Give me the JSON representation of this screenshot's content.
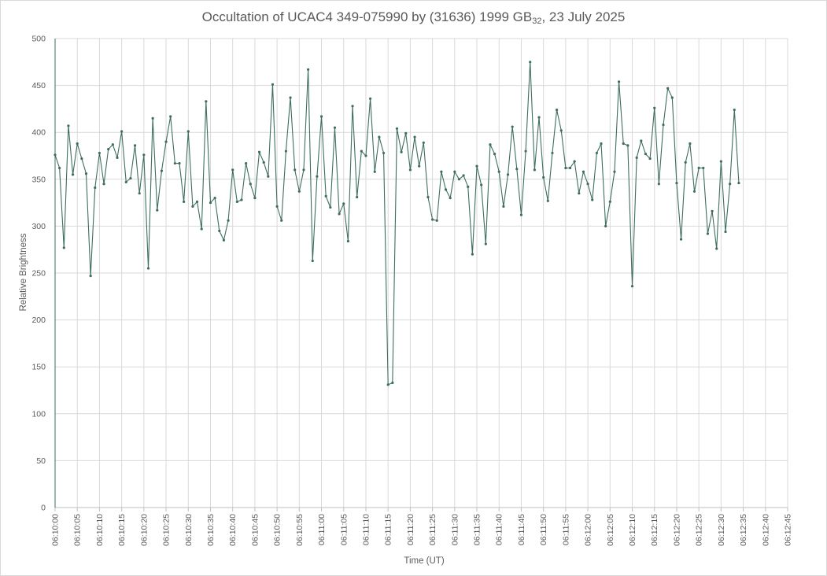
{
  "chart_data": {
    "type": "line",
    "title": {
      "main": "Occultation of UCAC4 349-075990 by (31636) 1999 GB",
      "subscript": "32",
      "suffix": ", 23 July 2025"
    },
    "xlabel": "Time (UT)",
    "ylabel": "Relative Brightness",
    "ylim": [
      0,
      500
    ],
    "yticks": [
      0,
      50,
      100,
      150,
      200,
      250,
      300,
      350,
      400,
      450,
      500
    ],
    "x_range": [
      "06:10:00",
      "06:12:45"
    ],
    "x_ticks": [
      "06:10:00",
      "06:10:05",
      "06:10:10",
      "06:10:15",
      "06:10:20",
      "06:10:25",
      "06:10:30",
      "06:10:35",
      "06:10:40",
      "06:10:45",
      "06:10:50",
      "06:10:55",
      "06:11:00",
      "06:11:05",
      "06:11:10",
      "06:11:15",
      "06:11:20",
      "06:11:25",
      "06:11:30",
      "06:11:35",
      "06:11:40",
      "06:11:45",
      "06:11:50",
      "06:11:55",
      "06:12:00",
      "06:12:05",
      "06:12:10",
      "06:12:15",
      "06:12:20",
      "06:12:25",
      "06:12:30",
      "06:12:35",
      "06:12:40",
      "06:12:45"
    ],
    "grid": true,
    "color": "#3e6e5c",
    "series": [
      {
        "name": "",
        "start": "06:10:00",
        "interval_seconds": 1,
        "values": [
          376,
          362,
          277,
          407,
          355,
          388,
          372,
          356,
          247,
          341,
          378,
          345,
          382,
          387,
          373,
          401,
          347,
          351,
          386,
          335,
          376,
          255,
          415,
          317,
          359,
          390,
          417,
          367,
          367,
          326,
          401,
          321,
          326,
          297,
          433,
          325,
          330,
          295,
          285,
          306,
          360,
          326,
          328,
          367,
          345,
          330,
          379,
          368,
          353,
          451,
          321,
          306,
          380,
          437,
          360,
          337,
          360,
          467,
          263,
          353,
          417,
          332,
          320,
          405,
          313,
          324,
          284,
          428,
          331,
          380,
          375,
          436,
          358,
          395,
          378,
          131,
          133,
          404,
          379,
          399,
          360,
          395,
          364,
          389,
          331,
          307,
          306,
          358,
          339,
          330,
          358,
          350,
          354,
          342,
          270,
          364,
          344,
          281,
          387,
          377,
          358,
          321,
          355,
          406,
          361,
          312,
          380,
          475,
          360,
          416,
          352,
          327,
          378,
          424,
          402,
          362,
          362,
          369,
          335,
          358,
          345,
          328,
          378,
          388,
          300,
          326,
          358,
          454,
          388,
          386,
          236,
          373,
          391,
          377,
          372,
          426,
          345,
          408,
          447,
          437,
          346,
          286,
          368,
          388,
          337,
          362,
          362,
          292,
          316,
          276,
          369,
          294,
          345,
          424,
          346
        ]
      }
    ]
  }
}
